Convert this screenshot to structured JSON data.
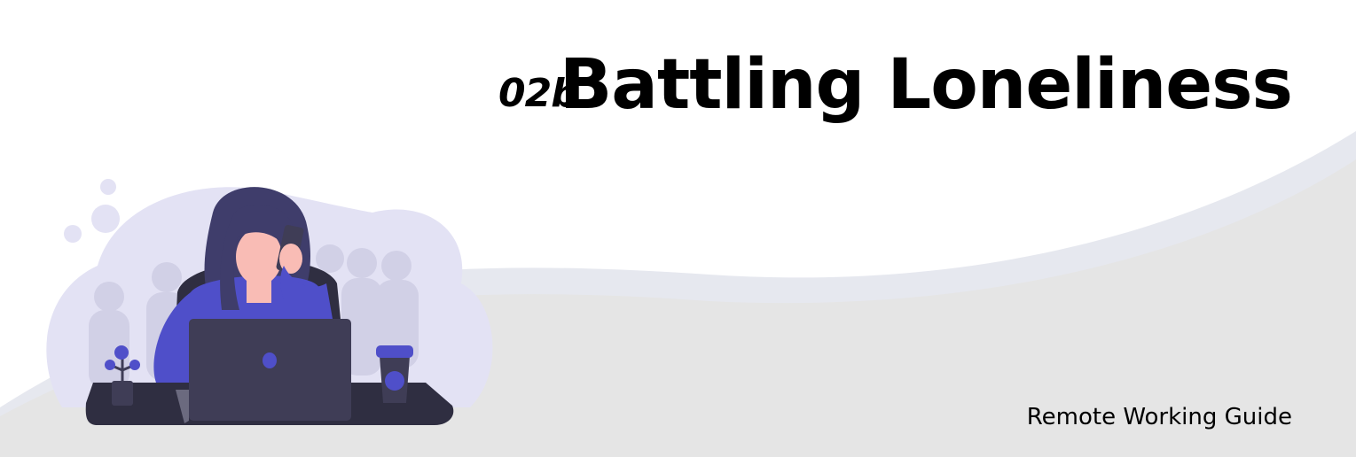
{
  "header": {
    "section_number": "02b",
    "title": "Battling Loneliness"
  },
  "footer": {
    "guide_label": "Remote Working Guide"
  },
  "illustration": {
    "icon": "woman-on-phone-at-laptop-illustration"
  },
  "colors": {
    "background": "#ffffff",
    "wave_light": "#e6e8ef",
    "wave_gray": "#e5e5e5",
    "accent_purple": "#4f4fc9",
    "hair_dark": "#3f3d6b",
    "laptop_dark": "#3f3d56",
    "skin": "#f9bcb5",
    "cloud_lavender": "#e3e2f4",
    "text": "#000000"
  }
}
